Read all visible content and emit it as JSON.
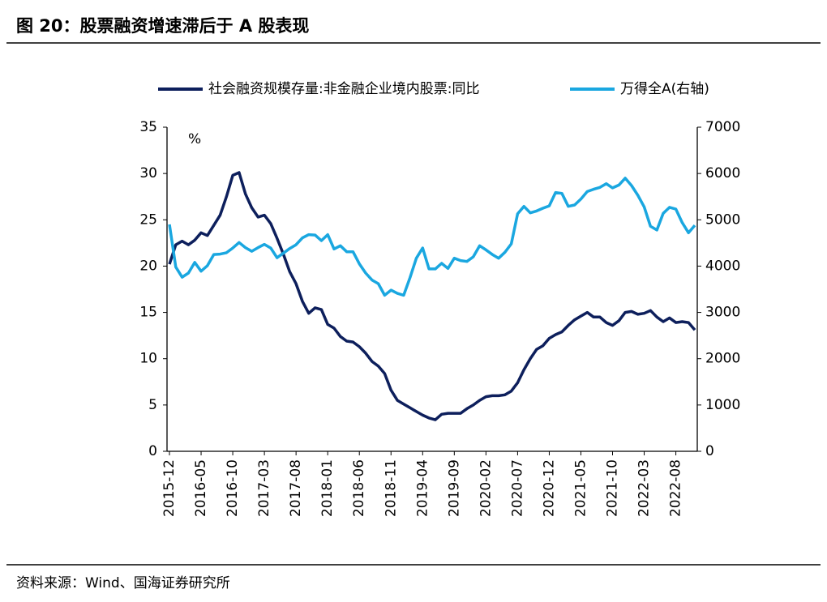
{
  "chart_data": {
    "type": "line",
    "title": "图 20：股票融资增速滞后于 A 股表现",
    "y_label": "%",
    "source": "资料来源：Wind、国海证券研究所",
    "categories": [
      "2015-12",
      null,
      null,
      null,
      null,
      "2016-05",
      null,
      null,
      null,
      null,
      "2016-10",
      null,
      null,
      null,
      null,
      "2017-03",
      null,
      null,
      null,
      null,
      "2017-08",
      null,
      null,
      null,
      null,
      "2018-01",
      null,
      null,
      null,
      null,
      "2018-06",
      null,
      null,
      null,
      null,
      "2018-11",
      null,
      null,
      null,
      null,
      "2019-04",
      null,
      null,
      null,
      null,
      "2019-09",
      null,
      null,
      null,
      null,
      "2020-02",
      null,
      null,
      null,
      null,
      "2020-07",
      null,
      null,
      null,
      null,
      "2020-12",
      null,
      null,
      null,
      null,
      "2021-05",
      null,
      null,
      null,
      null,
      "2021-10",
      null,
      null,
      null,
      null,
      "2022-03",
      null,
      null,
      null,
      null,
      "2022-08",
      null,
      null,
      null
    ],
    "series": [
      {
        "name": "社会融资规模存量:非金融企业境内股票:同比",
        "color": "#0d1f5c",
        "values": [
          20.2,
          22.3,
          22.7,
          22.3,
          22.8,
          23.6,
          23.3,
          24.4,
          25.5,
          27.5,
          29.8,
          30.1,
          27.8,
          26.3,
          25.3,
          25.5,
          24.6,
          23.0,
          21.3,
          19.4,
          18.1,
          16.2,
          14.9,
          15.5,
          15.3,
          13.7,
          13.3,
          12.4,
          11.9,
          11.8,
          11.3,
          10.6,
          9.7,
          9.2,
          8.4,
          6.6,
          5.5,
          5.1,
          4.7,
          4.3,
          3.9,
          3.6,
          3.4,
          4.0,
          4.1,
          4.1,
          4.1,
          4.6,
          5.0,
          5.5,
          5.9,
          6.0,
          6.0,
          6.1,
          6.5,
          7.4,
          8.8,
          10.0,
          11.0,
          11.4,
          12.2,
          12.6,
          12.9,
          13.6,
          14.2,
          14.6,
          15.0,
          14.5,
          14.5,
          13.9,
          13.6,
          14.1,
          15.0,
          15.1,
          14.8,
          14.9,
          15.2,
          14.5,
          14.0,
          14.4,
          13.9,
          14.0,
          13.9,
          13.1
        ]
      },
      {
        "name": "万得全A(右轴)",
        "color": "#1aa7e0",
        "axis": "y2",
        "values": [
          4900,
          3980,
          3760,
          3850,
          4080,
          3890,
          4010,
          4250,
          4260,
          4290,
          4390,
          4510,
          4400,
          4320,
          4400,
          4470,
          4390,
          4180,
          4280,
          4380,
          4460,
          4610,
          4680,
          4670,
          4550,
          4680,
          4370,
          4440,
          4310,
          4310,
          4050,
          3850,
          3700,
          3620,
          3370,
          3480,
          3410,
          3370,
          3750,
          4170,
          4390,
          3940,
          3940,
          4060,
          3950,
          4170,
          4120,
          4100,
          4200,
          4440,
          4350,
          4250,
          4170,
          4300,
          4480,
          5130,
          5290,
          5150,
          5190,
          5250,
          5300,
          5590,
          5570,
          5290,
          5320,
          5450,
          5610,
          5660,
          5700,
          5780,
          5690,
          5750,
          5900,
          5740,
          5530,
          5280,
          4860,
          4780,
          5140,
          5270,
          5230,
          4940,
          4720,
          4880
        ]
      }
    ],
    "ylim": [
      0,
      35
    ],
    "yticks": [
      0,
      5,
      10,
      15,
      20,
      25,
      30,
      35
    ],
    "y2lim": [
      0,
      7000
    ],
    "y2ticks": [
      0,
      1000,
      2000,
      3000,
      4000,
      5000,
      6000,
      7000
    ]
  }
}
